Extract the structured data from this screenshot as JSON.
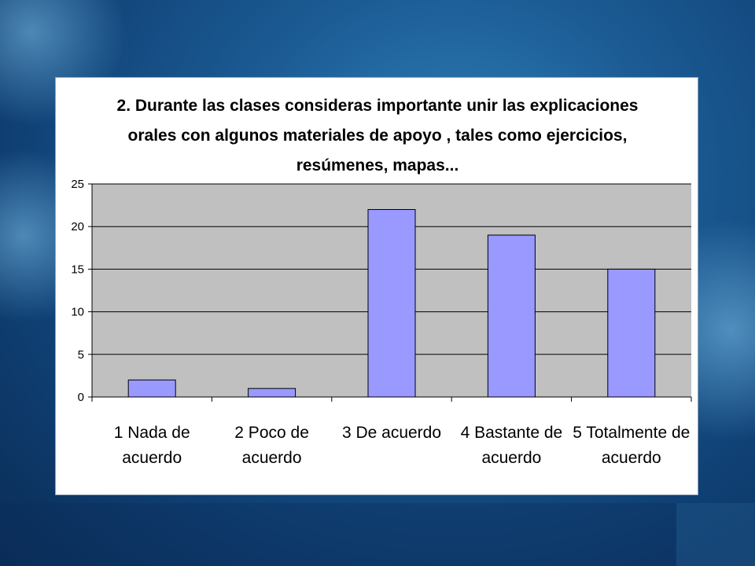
{
  "chart_data": {
    "type": "bar",
    "title_lines": [
      "2. Durante las clases consideras importante unir las explicaciones",
      "orales con algunos materiales de apoyo , tales como ejercicios,",
      "resúmenes, mapas..."
    ],
    "categories": [
      [
        "1 Nada de",
        "acuerdo"
      ],
      [
        "2 Poco de",
        "acuerdo"
      ],
      [
        "3 De acuerdo"
      ],
      [
        "4 Bastante de",
        "acuerdo"
      ],
      [
        "5 Totalmente de",
        "acuerdo"
      ]
    ],
    "values": [
      2,
      1,
      22,
      19,
      15
    ],
    "yticks": [
      "0",
      "5",
      "10",
      "15",
      "20",
      "25"
    ],
    "ylim": [
      0,
      25
    ],
    "grid": true,
    "legend": "none",
    "colors": {
      "bar": "#9999ff",
      "bar_stroke": "#000000",
      "plot_bg": "#c0c0c0",
      "grid": "#000000"
    }
  }
}
